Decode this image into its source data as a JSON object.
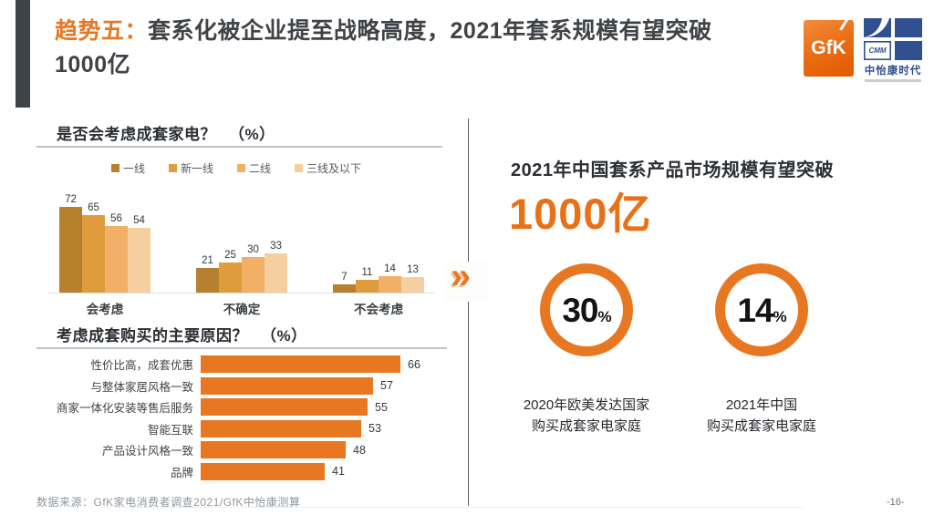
{
  "page": {
    "source": "数据来源：GfK家电消费者调查2021/GfK中怡康测算",
    "page_number": "-16-"
  },
  "colors": {
    "accent_orange": "#e87722",
    "header_bar": "#3e4347",
    "dark_text": "#3f4347",
    "cmm_blue": "#30508f",
    "gfk_orange": "#e86a10"
  },
  "header": {
    "title_prefix": "趋势五：",
    "title_rest": "套系化被企业提至战略高度，2021年套系规模有望突破",
    "title_line2": "1000亿",
    "logos": {
      "gfk_text": "GfK",
      "cmm_abbr": "CMM",
      "cmm_name": "中怡康时代"
    }
  },
  "left": {
    "chart1_title": "是否会考虑成套家电？",
    "chart1_unit": "（%）",
    "chart2_title": "考虑成套购买的主要原因？",
    "chart2_unit": "（%）"
  },
  "right": {
    "headline": "2021年中国套系产品市场规模有望突破",
    "big_number": "1000亿",
    "chevron": "»",
    "stats": [
      {
        "value": "30",
        "unit": "%",
        "label_line1": "2020年欧美发达国家",
        "label_line2": "购买成套家电家庭"
      },
      {
        "value": "14",
        "unit": "%",
        "label_line1": "2021年中国",
        "label_line2": "购买成套家电家庭"
      }
    ]
  },
  "chart_data": [
    {
      "type": "bar",
      "title": "是否会考虑成套家电？ (%)",
      "categories": [
        "会考虑",
        "不确定",
        "不会考虑"
      ],
      "series": [
        {
          "name": "一线",
          "color": "#b5812f",
          "values": [
            72,
            21,
            7
          ]
        },
        {
          "name": "新一线",
          "color": "#de9c3d",
          "values": [
            65,
            25,
            11
          ]
        },
        {
          "name": "二线",
          "color": "#f2af67",
          "values": [
            56,
            30,
            14
          ]
        },
        {
          "name": "三线及以下",
          "color": "#f6cfa0",
          "values": [
            54,
            33,
            13
          ]
        }
      ],
      "ylim": [
        0,
        80
      ],
      "grid": false,
      "legend_position": "top"
    },
    {
      "type": "bar",
      "orientation": "horizontal",
      "title": "考虑成套购买的主要原因？ (%)",
      "categories": [
        "性价比高，成套优惠",
        "与整体家居风格一致",
        "商家一体化安装等售后服务",
        "智能互联",
        "产品设计风格一致",
        "品牌"
      ],
      "values": [
        66,
        57,
        55,
        53,
        48,
        41
      ],
      "bar_color": "#e87722",
      "xlim": [
        0,
        70
      ],
      "grid": false
    }
  ]
}
